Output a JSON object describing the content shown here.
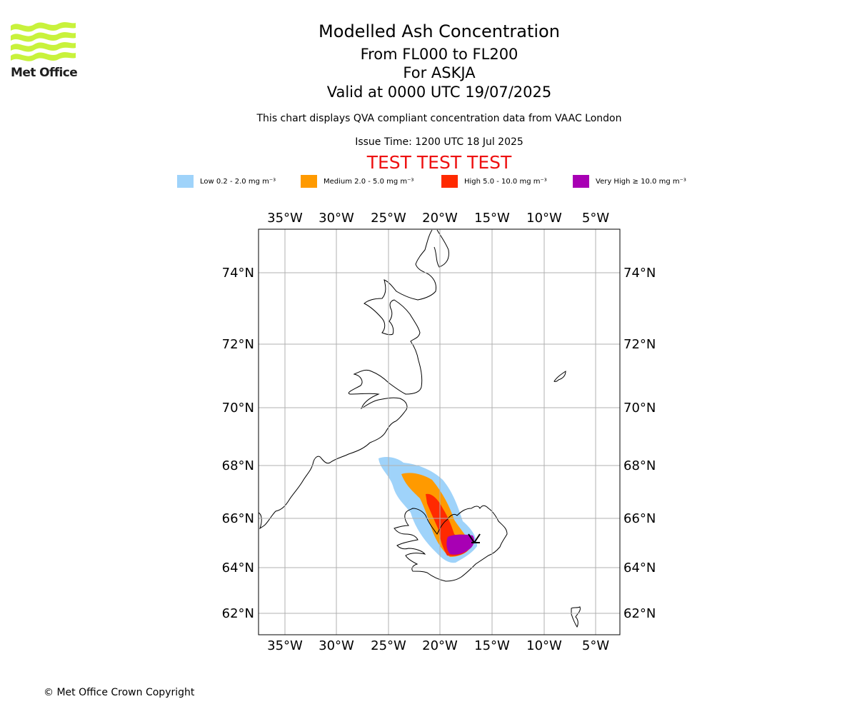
{
  "header": {
    "title": "Modelled Ash Concentration",
    "subtitle_levels": "From FL000 to FL200",
    "subtitle_volcano": "For ASKJA",
    "subtitle_valid": "Valid at 0000 UTC 19/07/2025",
    "description": "This chart displays QVA compliant concentration data from VAAC London",
    "issue_time": "Issue Time: 1200 UTC 18 Jul 2025",
    "test_banner": "TEST TEST TEST"
  },
  "logo": {
    "text": "Met Office",
    "icon": "met-office-wave-logo",
    "color": "#c8f23c"
  },
  "legend": [
    {
      "label": "Low 0.2 - 2.0 mg m⁻³",
      "color": "#9fd3fa"
    },
    {
      "label": "Medium 2.0 - 5.0 mg m⁻³",
      "color": "#ff9a00"
    },
    {
      "label": "High 5.0 - 10.0 mg m⁻³",
      "color": "#ff2a00"
    },
    {
      "label": "Very High  ≥  10.0 mg m⁻³",
      "color": "#a800b4"
    }
  ],
  "map": {
    "lon_ticks": [
      "35°W",
      "30°W",
      "25°W",
      "20°W",
      "15°W",
      "10°W",
      "5°W"
    ],
    "lat_ticks": [
      "74°N",
      "72°N",
      "70°N",
      "68°N",
      "66°N",
      "64°N",
      "62°N"
    ],
    "volcano_marker": "volcano-marker-icon"
  },
  "footer": {
    "copyright": "© Met Office Crown Copyright"
  }
}
